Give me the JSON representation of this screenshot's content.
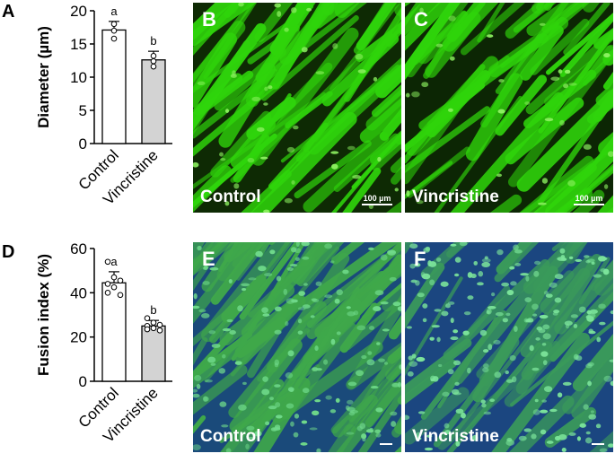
{
  "panels": {
    "a": "A",
    "b": "B",
    "c": "C",
    "d": "D",
    "e": "E",
    "f": "F"
  },
  "images": {
    "b": {
      "label": "Control",
      "scalebar": "100 µm",
      "color": "#2fd40b"
    },
    "c": {
      "label": "Vincristine",
      "scalebar": "100 µm",
      "color": "#2fd40b"
    },
    "e": {
      "label": "Control",
      "color": "#3fa84a"
    },
    "f": {
      "label": "Vincristine",
      "color": "#3a9a5a"
    }
  },
  "chart_data": [
    {
      "type": "bar",
      "ylabel": "Diameter (µm)",
      "ylim": [
        0,
        20
      ],
      "yticks": [
        "0",
        "5",
        "10",
        "15",
        "20"
      ],
      "categories": [
        "Control",
        "Vincristine"
      ],
      "values": [
        17.1,
        12.6
      ],
      "errors": [
        1.3,
        1.3
      ],
      "letters": [
        "a",
        "b"
      ],
      "points": [
        [
          18.0,
          17.0,
          15.8
        ],
        [
          13.2,
          12.4,
          11.6
        ]
      ],
      "bar_colors": [
        "#ffffff",
        "#d3d3d3"
      ]
    },
    {
      "type": "bar",
      "ylabel": "Fusion index (%)",
      "ylim": [
        0,
        60
      ],
      "yticks": [
        "0",
        "20",
        "40",
        "60"
      ],
      "categories": [
        "Control",
        "Vincristine"
      ],
      "values": [
        44.5,
        25.0
      ],
      "errors": [
        5.0,
        2.5
      ],
      "letters": [
        "a",
        "b"
      ],
      "points": [
        [
          54.0,
          47.0,
          45.5,
          44.0,
          42.5,
          39.0,
          40.0
        ],
        [
          28.5,
          26.5,
          25.5,
          25.0,
          24.0,
          23.0,
          23.5
        ]
      ],
      "bar_colors": [
        "#ffffff",
        "#d3d3d3"
      ]
    }
  ]
}
